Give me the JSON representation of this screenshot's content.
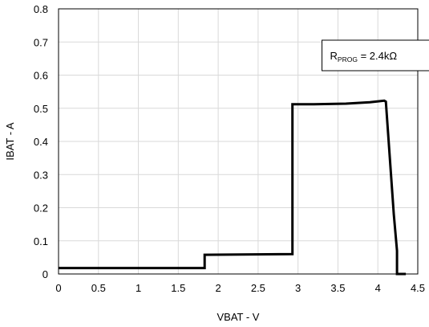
{
  "chart_data": {
    "type": "line",
    "xlabel": "VBAT - V",
    "ylabel": "IBAT - A",
    "xlim": [
      0,
      4.5
    ],
    "ylim": [
      0,
      0.8
    ],
    "x_ticks": [
      "0",
      "0.5",
      "1",
      "1.5",
      "2",
      "2.5",
      "3",
      "3.5",
      "4",
      "4.5"
    ],
    "y_ticks": [
      "0",
      "0.1",
      "0.2",
      "0.3",
      "0.4",
      "0.5",
      "0.6",
      "0.7",
      "0.8"
    ],
    "grid": true,
    "series": [
      {
        "color": "#000000",
        "points": [
          [
            0,
            0.018
          ],
          [
            1.83,
            0.018
          ],
          [
            1.83,
            0.058
          ],
          [
            2.93,
            0.06
          ],
          [
            2.93,
            0.512
          ],
          [
            3.2,
            0.512
          ],
          [
            3.6,
            0.514
          ],
          [
            3.9,
            0.518
          ],
          [
            4.08,
            0.523
          ],
          [
            4.1,
            0.52
          ],
          [
            4.2,
            0.18
          ],
          [
            4.24,
            0.07
          ],
          [
            4.24,
            0.0
          ],
          [
            4.35,
            0.0
          ]
        ]
      }
    ],
    "annotation": {
      "prefix": "R",
      "subscript": "PROG",
      "suffix": " = 2.4kΩ",
      "at": [
        3.3,
        0.64
      ]
    }
  }
}
